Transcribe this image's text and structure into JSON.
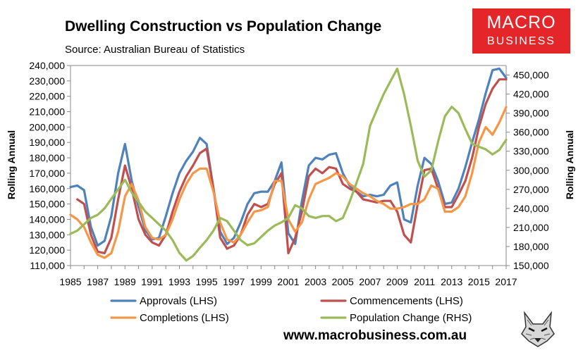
{
  "header": {
    "title": "Dwelling Construction vs Population Change",
    "subtitle": "Source: Australian Bureau of Statistics"
  },
  "logo": {
    "line1": "MACRO",
    "line2": "BUSINESS",
    "color": "#e4252a"
  },
  "footer": {
    "website": "www.macrobusiness.com.au",
    "emblem_icon": "wolf-head-icon"
  },
  "chart_data": {
    "type": "line",
    "title": "Dwelling Construction vs Population Change",
    "subtitle": "Source: Australian Bureau of Statistics",
    "xlabel": "",
    "ylabel": "Rolling Annual",
    "ylabel_right": "Rolling Annual",
    "xlim": [
      1985,
      2017
    ],
    "ylim": [
      110000,
      240000
    ],
    "ylim_right": [
      150000,
      465000
    ],
    "x_ticks": [
      1985,
      1987,
      1989,
      1991,
      1993,
      1995,
      1997,
      1999,
      2001,
      2003,
      2005,
      2007,
      2009,
      2011,
      2013,
      2015,
      2017
    ],
    "x_tick_labels": [
      "1985",
      "1987",
      "1989",
      "1991",
      "1993",
      "1995",
      "1997",
      "1999",
      "2001",
      "2003",
      "2005",
      "2007",
      "2009",
      "2011",
      "2013",
      "2015",
      "2017"
    ],
    "y_ticks": [
      110000,
      120000,
      130000,
      140000,
      150000,
      160000,
      170000,
      180000,
      190000,
      200000,
      210000,
      220000,
      230000,
      240000
    ],
    "y_tick_labels": [
      "110,000",
      "120,000",
      "130,000",
      "140,000",
      "150,000",
      "160,000",
      "170,000",
      "180,000",
      "190,000",
      "200,000",
      "210,000",
      "220,000",
      "230,000",
      "240,000"
    ],
    "y_right_ticks": [
      150000,
      180000,
      210000,
      240000,
      270000,
      300000,
      330000,
      360000,
      390000,
      420000,
      450000
    ],
    "y_right_tick_labels": [
      "150,000",
      "180,000",
      "210,000",
      "240,000",
      "270,000",
      "300,000",
      "330,000",
      "360,000",
      "390,000",
      "420,000",
      "450,000"
    ],
    "grid": false,
    "legend_position": "bottom",
    "series": [
      {
        "name": "Approvals (LHS)",
        "axis": "left",
        "color": "#4f81bd",
        "x": [
          1985,
          1985.5,
          1986,
          1986.5,
          1987,
          1987.5,
          1988,
          1988.5,
          1989,
          1989.5,
          1990,
          1990.5,
          1991,
          1991.5,
          1992,
          1992.5,
          1993,
          1993.5,
          1994,
          1994.5,
          1995,
          1995.5,
          1996,
          1996.5,
          1997,
          1997.5,
          1998,
          1998.5,
          1999,
          1999.5,
          2000,
          2000.5,
          2001,
          2001.5,
          2002,
          2002.5,
          2003,
          2003.5,
          2004,
          2004.5,
          2005,
          2005.5,
          2006,
          2006.5,
          2007,
          2007.5,
          2008,
          2008.5,
          2009,
          2009.5,
          2010,
          2010.5,
          2011,
          2011.5,
          2012,
          2012.5,
          2013,
          2013.5,
          2014,
          2014.5,
          2015,
          2015.5,
          2016,
          2016.5,
          2017
        ],
        "values": [
          161000,
          162000,
          159000,
          135000,
          123000,
          126000,
          142000,
          170000,
          189000,
          165000,
          148000,
          133000,
          127000,
          128000,
          142000,
          157000,
          170000,
          178000,
          184000,
          193000,
          189000,
          160000,
          132000,
          124000,
          128000,
          138000,
          150000,
          157000,
          158000,
          158000,
          165000,
          177000,
          131000,
          124000,
          152000,
          175000,
          180000,
          179000,
          182000,
          183000,
          170000,
          162000,
          158000,
          155000,
          156000,
          155000,
          156000,
          162000,
          164000,
          140000,
          138000,
          162000,
          180000,
          176000,
          165000,
          150000,
          151000,
          160000,
          174000,
          190000,
          205000,
          222000,
          237000,
          238000,
          232000
        ]
      },
      {
        "name": "Commencements (LHS)",
        "axis": "left",
        "color": "#c0504d",
        "x": [
          1985,
          1985.5,
          1986,
          1986.5,
          1987,
          1987.5,
          1988,
          1988.5,
          1989,
          1989.5,
          1990,
          1990.5,
          1991,
          1991.5,
          1992,
          1992.5,
          1993,
          1993.5,
          1994,
          1994.5,
          1995,
          1995.5,
          1996,
          1996.5,
          1997,
          1997.5,
          1998,
          1998.5,
          1999,
          1999.5,
          2000,
          2000.5,
          2001,
          2001.5,
          2002,
          2002.5,
          2003,
          2003.5,
          2004,
          2004.5,
          2005,
          2005.5,
          2006,
          2006.5,
          2007,
          2007.5,
          2008,
          2008.5,
          2009,
          2009.5,
          2010,
          2010.5,
          2011,
          2011.5,
          2012,
          2012.5,
          2013,
          2013.5,
          2014,
          2014.5,
          2015,
          2015.5,
          2016,
          2016.5,
          2017
        ],
        "values": [
          null,
          153000,
          150000,
          130000,
          119000,
          118000,
          128000,
          153000,
          175000,
          160000,
          140000,
          130000,
          125000,
          123000,
          130000,
          145000,
          158000,
          168000,
          175000,
          183000,
          186000,
          160000,
          128000,
          121000,
          123000,
          130000,
          143000,
          150000,
          148000,
          150000,
          163000,
          170000,
          118000,
          128000,
          145000,
          168000,
          173000,
          170000,
          174000,
          173000,
          163000,
          160000,
          158000,
          153000,
          152000,
          151000,
          152000,
          152000,
          145000,
          130000,
          125000,
          150000,
          172000,
          173000,
          160000,
          148000,
          148000,
          156000,
          165000,
          180000,
          200000,
          215000,
          225000,
          231000,
          231000
        ]
      },
      {
        "name": "Completions (LHS)",
        "axis": "left",
        "color": "#f79646",
        "x": [
          1985,
          1985.5,
          1986,
          1986.5,
          1987,
          1987.5,
          1988,
          1988.5,
          1989,
          1989.5,
          1990,
          1990.5,
          1991,
          1991.5,
          1992,
          1992.5,
          1993,
          1993.5,
          1994,
          1994.5,
          1995,
          1995.5,
          1996,
          1996.5,
          1997,
          1997.5,
          1998,
          1998.5,
          1999,
          1999.5,
          2000,
          2000.5,
          2001,
          2001.5,
          2002,
          2002.5,
          2003,
          2003.5,
          2004,
          2004.5,
          2005,
          2005.5,
          2006,
          2006.5,
          2007,
          2007.5,
          2008,
          2008.5,
          2009,
          2009.5,
          2010,
          2010.5,
          2011,
          2011.5,
          2012,
          2012.5,
          2013,
          2013.5,
          2014,
          2014.5,
          2015,
          2015.5,
          2016,
          2016.5,
          2017
        ],
        "values": [
          143000,
          140000,
          135000,
          125000,
          117000,
          115000,
          118000,
          132000,
          155000,
          163000,
          152000,
          135000,
          128000,
          127000,
          130000,
          140000,
          153000,
          163000,
          170000,
          173000,
          173000,
          158000,
          138000,
          127000,
          125000,
          130000,
          138000,
          145000,
          146000,
          148000,
          165000,
          165000,
          140000,
          132000,
          138000,
          153000,
          163000,
          165000,
          167000,
          170000,
          168000,
          163000,
          160000,
          157000,
          155000,
          152000,
          150000,
          147000,
          147000,
          148000,
          150000,
          150000,
          153000,
          162000,
          160000,
          145000,
          145000,
          148000,
          155000,
          170000,
          190000,
          200000,
          195000,
          203000,
          213000
        ]
      },
      {
        "name": "Population Change (RHS)",
        "axis": "right",
        "color": "#9bbb59",
        "x": [
          1985,
          1985.5,
          1986,
          1986.5,
          1987,
          1987.5,
          1988,
          1988.5,
          1989,
          1989.5,
          1990,
          1990.5,
          1991,
          1991.5,
          1992,
          1992.5,
          1993,
          1993.5,
          1994,
          1994.5,
          1995,
          1995.5,
          1996,
          1996.5,
          1997,
          1997.5,
          1998,
          1998.5,
          1999,
          1999.5,
          2000,
          2000.5,
          2001,
          2001.5,
          2002,
          2002.5,
          2003,
          2003.5,
          2004,
          2004.5,
          2005,
          2005.5,
          2006,
          2006.5,
          2007,
          2007.5,
          2008,
          2008.5,
          2009,
          2009.5,
          2010,
          2010.5,
          2011,
          2011.5,
          2012,
          2012.5,
          2013,
          2013.5,
          2014,
          2014.5,
          2015,
          2015.5,
          2016,
          2016.5,
          2017
        ],
        "values": [
          200000,
          205000,
          215000,
          225000,
          230000,
          240000,
          255000,
          270000,
          285000,
          265000,
          250000,
          235000,
          225000,
          215000,
          205000,
          190000,
          170000,
          158000,
          165000,
          178000,
          190000,
          205000,
          225000,
          220000,
          205000,
          190000,
          182000,
          185000,
          195000,
          205000,
          213000,
          218000,
          225000,
          245000,
          240000,
          228000,
          225000,
          228000,
          228000,
          220000,
          225000,
          250000,
          280000,
          310000,
          370000,
          395000,
          420000,
          440000,
          460000,
          420000,
          370000,
          315000,
          290000,
          300000,
          345000,
          385000,
          400000,
          390000,
          365000,
          342000,
          337000,
          333000,
          325000,
          332000,
          348000
        ]
      }
    ]
  }
}
